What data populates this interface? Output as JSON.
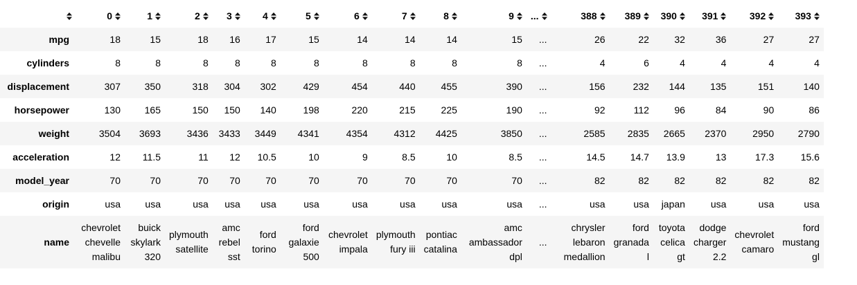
{
  "columns": [
    "0",
    "1",
    "2",
    "3",
    "4",
    "5",
    "6",
    "7",
    "8",
    "9",
    "...",
    "388",
    "389",
    "390",
    "391",
    "392",
    "393"
  ],
  "sort_icon": "sort-icon",
  "rows": [
    {
      "label": "mpg",
      "cells": [
        "18",
        "15",
        "18",
        "16",
        "17",
        "15",
        "14",
        "14",
        "14",
        "15",
        "...",
        "26",
        "22",
        "32",
        "36",
        "27",
        "27"
      ]
    },
    {
      "label": "cylinders",
      "cells": [
        "8",
        "8",
        "8",
        "8",
        "8",
        "8",
        "8",
        "8",
        "8",
        "8",
        "...",
        "4",
        "6",
        "4",
        "4",
        "4",
        "4"
      ]
    },
    {
      "label": "displacement",
      "cells": [
        "307",
        "350",
        "318",
        "304",
        "302",
        "429",
        "454",
        "440",
        "455",
        "390",
        "...",
        "156",
        "232",
        "144",
        "135",
        "151",
        "140"
      ]
    },
    {
      "label": "horsepower",
      "cells": [
        "130",
        "165",
        "150",
        "150",
        "140",
        "198",
        "220",
        "215",
        "225",
        "190",
        "...",
        "92",
        "112",
        "96",
        "84",
        "90",
        "86"
      ]
    },
    {
      "label": "weight",
      "cells": [
        "3504",
        "3693",
        "3436",
        "3433",
        "3449",
        "4341",
        "4354",
        "4312",
        "4425",
        "3850",
        "...",
        "2585",
        "2835",
        "2665",
        "2370",
        "2950",
        "2790"
      ]
    },
    {
      "label": "acceleration",
      "cells": [
        "12",
        "11.5",
        "11",
        "12",
        "10.5",
        "10",
        "9",
        "8.5",
        "10",
        "8.5",
        "...",
        "14.5",
        "14.7",
        "13.9",
        "13",
        "17.3",
        "15.6"
      ]
    },
    {
      "label": "model_year",
      "cells": [
        "70",
        "70",
        "70",
        "70",
        "70",
        "70",
        "70",
        "70",
        "70",
        "70",
        "...",
        "82",
        "82",
        "82",
        "82",
        "82",
        "82"
      ]
    },
    {
      "label": "origin",
      "cells": [
        "usa",
        "usa",
        "usa",
        "usa",
        "usa",
        "usa",
        "usa",
        "usa",
        "usa",
        "usa",
        "...",
        "usa",
        "usa",
        "japan",
        "usa",
        "usa",
        "usa"
      ]
    },
    {
      "label": "name",
      "cells": [
        [
          "chevrolet",
          "chevelle",
          "malibu"
        ],
        [
          "buick",
          "skylark",
          "320"
        ],
        [
          "plymouth",
          "satellite"
        ],
        [
          "amc",
          "rebel",
          "sst"
        ],
        [
          "ford",
          "torino"
        ],
        [
          "ford",
          "galaxie",
          "500"
        ],
        [
          "chevrolet",
          "impala"
        ],
        [
          "plymouth",
          "fury iii"
        ],
        [
          "pontiac",
          "catalina"
        ],
        [
          "amc",
          "ambassador",
          "dpl"
        ],
        [
          "..."
        ],
        [
          "chrysler",
          "lebaron",
          "medallion"
        ],
        [
          "ford",
          "granada",
          "l"
        ],
        [
          "toyota",
          "celica",
          "gt"
        ],
        [
          "dodge",
          "charger",
          "2.2"
        ],
        [
          "chevrolet",
          "camaro"
        ],
        [
          "ford",
          "mustang",
          "gl"
        ]
      ]
    }
  ]
}
